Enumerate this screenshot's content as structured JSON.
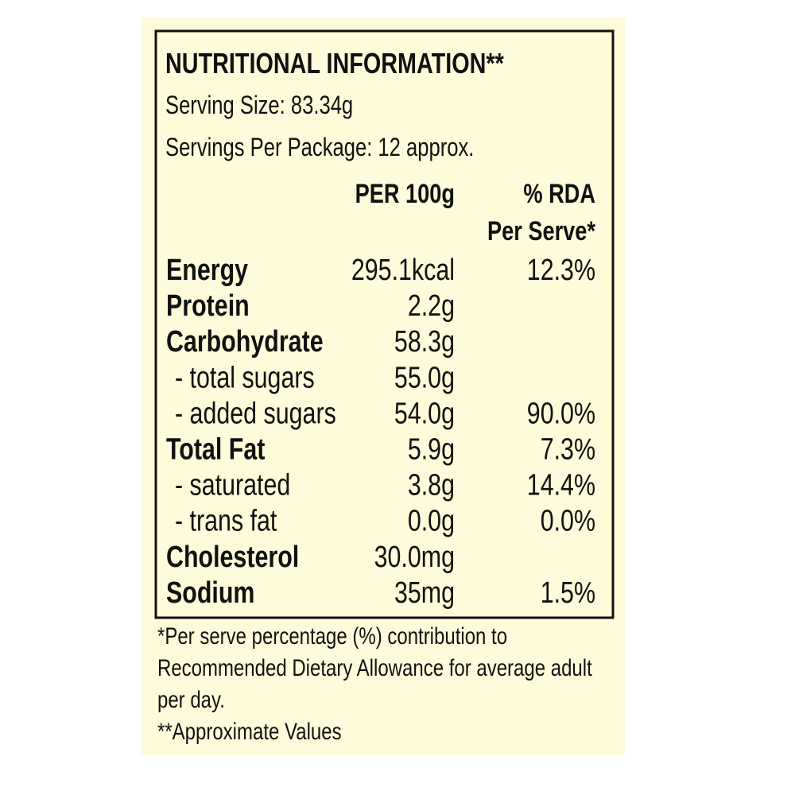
{
  "header": {
    "title": "NUTRITIONAL INFORMATION**",
    "serving_size": "Serving Size: 83.34g",
    "servings_per_package": "Servings Per Package: 12 approx."
  },
  "table": {
    "columns": {
      "per_100g": "PER 100g",
      "rda": [
        "% RDA",
        "Per Serve*"
      ]
    },
    "nutrients": [
      {
        "label": "Energy",
        "per_100g": "295.1kcal",
        "rda": "12.3%"
      },
      {
        "label": "Protein",
        "per_100g": "2.2g"
      },
      {
        "label": "Carbohydrate",
        "per_100g": "58.3g",
        "sub": [
          {
            "label": "- total sugars",
            "per_100g": "55.0g"
          },
          {
            "label": "- added sugars",
            "per_100g": "54.0g",
            "rda": "90.0%"
          }
        ]
      },
      {
        "label": "Total Fat",
        "per_100g": "5.9g",
        "rda": "7.3%",
        "sub": [
          {
            "label": "- saturated",
            "per_100g": "3.8g",
            "rda": "14.4%"
          },
          {
            "label": "- trans fat",
            "per_100g": "0.0g",
            "rda": "0.0%"
          }
        ]
      },
      {
        "label": "Cholesterol",
        "per_100g": "30.0mg"
      },
      {
        "label": "Sodium",
        "per_100g": "35mg",
        "rda": "1.5%"
      }
    ]
  },
  "footnotes": [
    "*Per serve percentage (%) contribution to",
    "Recommended Dietary Allowance for average adult",
    "per day.",
    "**Approximate Values"
  ]
}
